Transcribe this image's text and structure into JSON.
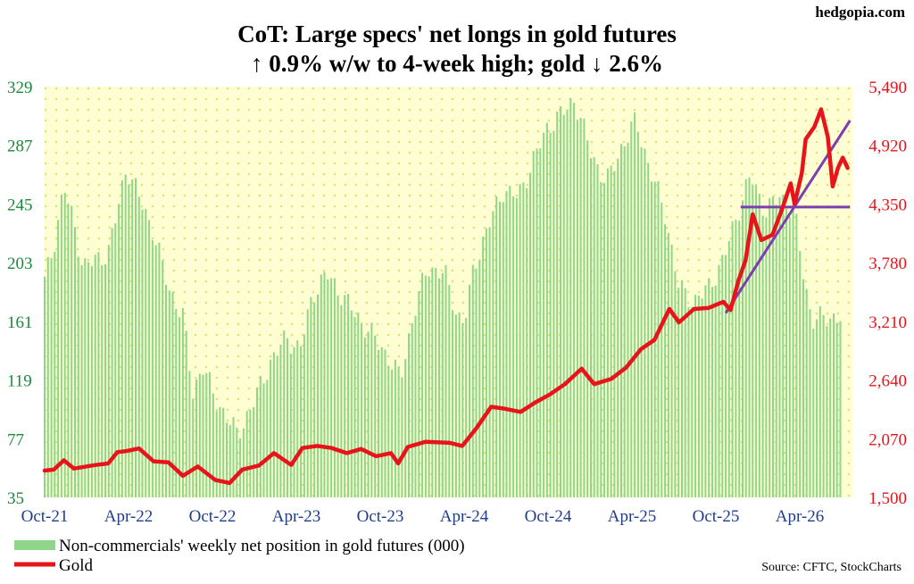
{
  "brand": "hedgopia.com",
  "source": "Source: CFTC, StockCharts",
  "colors": {
    "bars": "#8fd68a",
    "gold_line": "#e8141b",
    "trend_line": "#7b3fb0",
    "plot_bg": "#fffed2",
    "plot_dots": "#d8e37a",
    "left_axis": "#1a8a3a",
    "right_axis": "#e8141b",
    "x_axis": "#1f3d8c"
  },
  "chart_data": {
    "type": "bar",
    "title": "CoT: Large specs' net longs in gold futures",
    "subtitle": "↑ 0.9% w/w to 4-week high; gold ↓ 2.6%",
    "xlabel": "",
    "x_ticks": [
      "Oct-21",
      "Apr-22",
      "Oct-22",
      "Apr-23",
      "Oct-23",
      "Apr-24",
      "Oct-24",
      "Apr-25",
      "Oct-25",
      "Apr-26"
    ],
    "y_left": {
      "ylim": [
        35,
        329
      ],
      "ticks": [
        "329",
        "287",
        "245",
        "203",
        "161",
        "119",
        "77",
        "35"
      ]
    },
    "y_right": {
      "ylim": [
        1500,
        5490
      ],
      "ticks": [
        "5,490",
        "4,920",
        "4,350",
        "3,780",
        "3,210",
        "2,640",
        "2,070",
        "1,500"
      ]
    },
    "grid": false,
    "legend_position": "bottom-left",
    "series": [
      {
        "name": "Non-commercials' weekly net position in gold futures (000)",
        "type": "bar",
        "axis": "left",
        "anchors": [
          [
            "2021-10-01",
            190
          ],
          [
            "2021-10-20",
            215
          ],
          [
            "2021-11-10",
            258
          ],
          [
            "2021-12-01",
            230
          ],
          [
            "2021-12-20",
            200
          ],
          [
            "2022-01-15",
            205
          ],
          [
            "2022-02-10",
            210
          ],
          [
            "2022-03-01",
            240
          ],
          [
            "2022-03-20",
            272
          ],
          [
            "2022-04-15",
            250
          ],
          [
            "2022-05-15",
            225
          ],
          [
            "2022-06-15",
            185
          ],
          [
            "2022-07-15",
            165
          ],
          [
            "2022-08-05",
            110
          ],
          [
            "2022-08-25",
            130
          ],
          [
            "2022-09-20",
            105
          ],
          [
            "2022-10-10",
            95
          ],
          [
            "2022-11-05",
            80
          ],
          [
            "2022-12-05",
            100
          ],
          [
            "2023-01-10",
            130
          ],
          [
            "2023-02-15",
            150
          ],
          [
            "2023-03-15",
            140
          ],
          [
            "2023-04-10",
            180
          ],
          [
            "2023-05-10",
            195
          ],
          [
            "2023-06-10",
            180
          ],
          [
            "2023-07-10",
            165
          ],
          [
            "2023-08-15",
            150
          ],
          [
            "2023-09-15",
            135
          ],
          [
            "2023-10-10",
            120
          ],
          [
            "2023-11-05",
            165
          ],
          [
            "2023-12-05",
            200
          ],
          [
            "2024-01-10",
            195
          ],
          [
            "2024-02-05",
            165
          ],
          [
            "2024-02-20",
            160
          ],
          [
            "2024-03-10",
            200
          ],
          [
            "2024-04-10",
            230
          ],
          [
            "2024-05-10",
            255
          ],
          [
            "2024-06-10",
            250
          ],
          [
            "2024-07-10",
            275
          ],
          [
            "2024-08-10",
            300
          ],
          [
            "2024-09-10",
            310
          ],
          [
            "2024-10-05",
            320
          ],
          [
            "2024-11-10",
            280
          ],
          [
            "2024-12-10",
            260
          ],
          [
            "2025-01-10",
            285
          ],
          [
            "2025-02-10",
            305
          ],
          [
            "2025-03-10",
            270
          ],
          [
            "2025-04-10",
            240
          ],
          [
            "2025-05-10",
            185
          ],
          [
            "2025-06-10",
            175
          ],
          [
            "2025-07-10",
            185
          ],
          [
            "2025-08-10",
            205
          ],
          [
            "2025-09-10",
            240
          ],
          [
            "2025-10-05",
            265
          ],
          [
            "2025-11-05",
            240
          ],
          [
            "2025-12-05",
            250
          ],
          [
            "2026-01-05",
            240
          ],
          [
            "2026-01-25",
            190
          ],
          [
            "2026-02-10",
            163
          ],
          [
            "2026-03-10",
            163
          ],
          [
            "2026-04-10",
            165
          ]
        ]
      },
      {
        "name": "Gold",
        "type": "line",
        "axis": "right",
        "points": [
          [
            "2021-10-01",
            1760
          ],
          [
            "2021-10-20",
            1770
          ],
          [
            "2021-11-10",
            1860
          ],
          [
            "2021-12-01",
            1780
          ],
          [
            "2022-01-15",
            1815
          ],
          [
            "2022-02-10",
            1830
          ],
          [
            "2022-03-01",
            1940
          ],
          [
            "2022-03-20",
            1950
          ],
          [
            "2022-04-15",
            1975
          ],
          [
            "2022-05-15",
            1850
          ],
          [
            "2022-06-15",
            1840
          ],
          [
            "2022-07-15",
            1710
          ],
          [
            "2022-08-15",
            1800
          ],
          [
            "2022-09-20",
            1670
          ],
          [
            "2022-10-20",
            1640
          ],
          [
            "2022-11-15",
            1770
          ],
          [
            "2022-12-20",
            1810
          ],
          [
            "2023-01-20",
            1930
          ],
          [
            "2023-02-25",
            1815
          ],
          [
            "2023-03-20",
            1980
          ],
          [
            "2023-04-20",
            2000
          ],
          [
            "2023-05-20",
            1980
          ],
          [
            "2023-06-20",
            1930
          ],
          [
            "2023-07-20",
            1970
          ],
          [
            "2023-08-20",
            1900
          ],
          [
            "2023-09-20",
            1930
          ],
          [
            "2023-10-05",
            1830
          ],
          [
            "2023-10-25",
            1990
          ],
          [
            "2023-12-01",
            2040
          ],
          [
            "2024-01-20",
            2030
          ],
          [
            "2024-02-15",
            2000
          ],
          [
            "2024-03-15",
            2170
          ],
          [
            "2024-04-15",
            2380
          ],
          [
            "2024-05-15",
            2360
          ],
          [
            "2024-06-15",
            2330
          ],
          [
            "2024-07-15",
            2420
          ],
          [
            "2024-08-15",
            2500
          ],
          [
            "2024-09-15",
            2600
          ],
          [
            "2024-10-20",
            2750
          ],
          [
            "2024-11-15",
            2600
          ],
          [
            "2024-12-20",
            2650
          ],
          [
            "2025-01-20",
            2760
          ],
          [
            "2025-02-20",
            2940
          ],
          [
            "2025-03-20",
            3030
          ],
          [
            "2025-04-20",
            3330
          ],
          [
            "2025-05-10",
            3200
          ],
          [
            "2025-06-10",
            3330
          ],
          [
            "2025-07-10",
            3340
          ],
          [
            "2025-08-10",
            3400
          ],
          [
            "2025-08-25",
            3320
          ],
          [
            "2025-09-10",
            3600
          ],
          [
            "2025-09-25",
            3800
          ],
          [
            "2025-10-10",
            4250
          ],
          [
            "2025-10-28",
            4000
          ],
          [
            "2025-11-20",
            4050
          ],
          [
            "2025-12-10",
            4300
          ],
          [
            "2025-12-28",
            4550
          ],
          [
            "2026-01-05",
            4350
          ],
          [
            "2026-01-20",
            4650
          ],
          [
            "2026-01-28",
            4980
          ],
          [
            "2026-02-15",
            5100
          ],
          [
            "2026-03-01",
            5270
          ],
          [
            "2026-03-15",
            5000
          ],
          [
            "2026-03-25",
            4520
          ],
          [
            "2026-04-05",
            4700
          ],
          [
            "2026-04-15",
            4800
          ],
          [
            "2026-04-25",
            4700
          ]
        ]
      }
    ],
    "annotations": [
      {
        "type": "trendline",
        "axis": "right",
        "from": [
          "2025-08-15",
          3290
        ],
        "to": [
          "2026-04-30",
          5160
        ]
      },
      {
        "type": "horizontal",
        "axis": "right",
        "from": [
          "2025-09-15",
          4320
        ],
        "to": [
          "2026-04-30",
          4320
        ]
      }
    ]
  }
}
